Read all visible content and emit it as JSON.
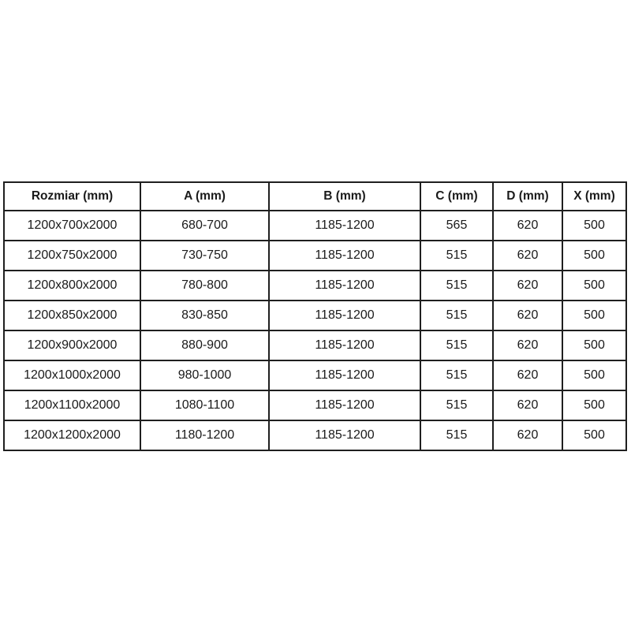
{
  "table": {
    "name": "shower-enclosure-dimensions",
    "columns": [
      {
        "label": "Rozmiar (mm)"
      },
      {
        "label": "A (mm)"
      },
      {
        "label": "B (mm)"
      },
      {
        "label": "C (mm)"
      },
      {
        "label": "D (mm)"
      },
      {
        "label": "X (mm)"
      }
    ],
    "rows": [
      {
        "cells": [
          "1200x700x2000",
          "680-700",
          "1185-1200",
          "565",
          "620",
          "500"
        ]
      },
      {
        "cells": [
          "1200x750x2000",
          "730-750",
          "1185-1200",
          "515",
          "620",
          "500"
        ]
      },
      {
        "cells": [
          "1200x800x2000",
          "780-800",
          "1185-1200",
          "515",
          "620",
          "500"
        ]
      },
      {
        "cells": [
          "1200x850x2000",
          "830-850",
          "1185-1200",
          "515",
          "620",
          "500"
        ]
      },
      {
        "cells": [
          "1200x900x2000",
          "880-900",
          "1185-1200",
          "515",
          "620",
          "500"
        ]
      },
      {
        "cells": [
          "1200x1000x2000",
          "980-1000",
          "1185-1200",
          "515",
          "620",
          "500"
        ]
      },
      {
        "cells": [
          "1200x1100x2000",
          "1080-1100",
          "1185-1200",
          "515",
          "620",
          "500"
        ]
      },
      {
        "cells": [
          "1200x1200x2000",
          "1180-1200",
          "1185-1200",
          "515",
          "620",
          "500"
        ]
      }
    ]
  },
  "colors": {
    "border": "#1f1f1f",
    "text": "#1a1a1a",
    "background": "#ffffff"
  }
}
